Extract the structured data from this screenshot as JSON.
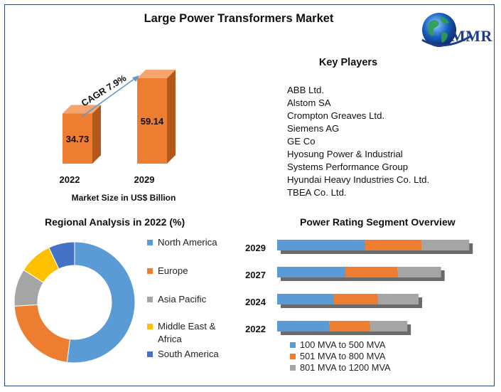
{
  "title": "Large Power Transformers Market",
  "logo": {
    "text": "MMR",
    "icon": "globe-icon"
  },
  "key_players": {
    "title": "Key Players",
    "items": [
      "ABB Ltd.",
      "Alstom SA",
      "Crompton Greaves Ltd.",
      "Siemens AG",
      "GE Co",
      "Hyosung Power & Industrial",
      "Systems Performance Group",
      "Hyundai Heavy Industries Co. Ltd.",
      "TBEA Co. Ltd."
    ]
  },
  "colors": {
    "blue": "#5b9bd5",
    "orange": "#ed7d31",
    "gray": "#a5a5a5",
    "yellow": "#ffc000",
    "darkblue": "#4472c4",
    "bar_orange": "#ed7d31",
    "bar_side": "#b5561b",
    "bar_top": "#f4a46c"
  },
  "chart_data": [
    {
      "type": "bar",
      "title": "Market Size in US$ Billion",
      "categories": [
        "2022",
        "2029"
      ],
      "values": [
        34.73,
        59.14
      ],
      "value_labels": [
        "34.73",
        "59.14"
      ],
      "annotation": "CAGR 7.9%",
      "xlabel": "Market Size in US$ Billion",
      "ylim": [
        0,
        62
      ]
    },
    {
      "type": "pie",
      "title": "Regional Analysis in 2022 (%)",
      "labels": [
        "North America",
        "Europe",
        "Asia Pacific",
        "Middle East & Africa",
        "South America"
      ],
      "values": [
        52,
        22,
        10,
        9,
        7
      ],
      "legend_position": "right"
    },
    {
      "type": "bar",
      "orientation": "horizontal",
      "stacked": true,
      "title": "Power Rating Segment Overview",
      "categories": [
        "2029",
        "2027",
        "2024",
        "2022"
      ],
      "series": [
        {
          "name": "100 MVA to 500 MVA",
          "values": [
            125,
            97,
            80,
            74
          ]
        },
        {
          "name": "501 MVA to 800 MVA",
          "values": [
            80,
            74,
            63,
            58
          ]
        },
        {
          "name": "801 MVA to 1200 MVA",
          "values": [
            68,
            62,
            58,
            53
          ]
        }
      ],
      "xlim": [
        0,
        280
      ],
      "legend_position": "bottom"
    }
  ]
}
